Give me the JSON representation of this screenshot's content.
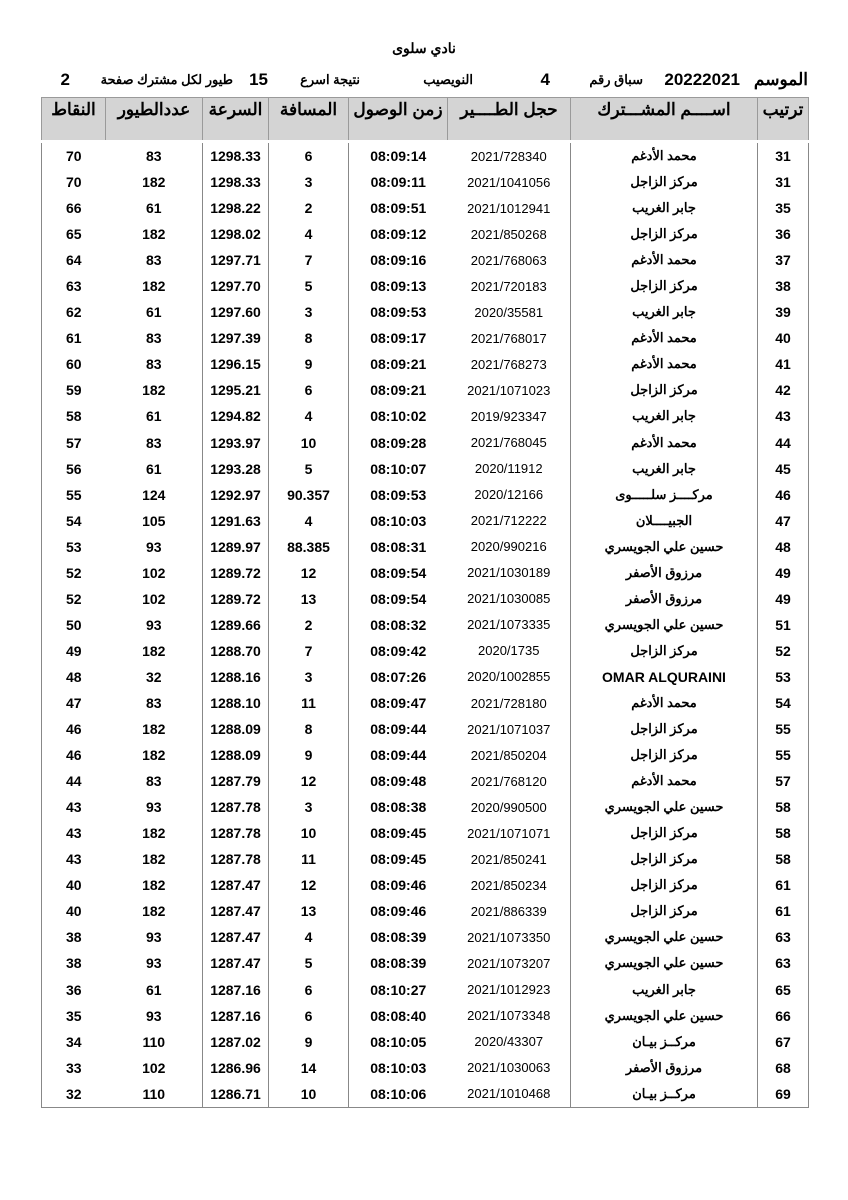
{
  "header": {
    "club": "نادي سلوى",
    "season_label": "الموسم",
    "season": "20222021",
    "race_label": "سباق رقم",
    "race_number": "4",
    "location": "النويصيب",
    "result_label": "نتيجة اسرع",
    "birds_per_member": "15",
    "birds_label": "طيور لكل مشترك صفحة",
    "page": "2"
  },
  "columns": {
    "points": "النقاط",
    "birds_count": "عددالطيور",
    "speed": "السرعة",
    "distance": "المسافة",
    "arrival": "زمن الوصول",
    "ring": "حجل الطــــير",
    "name": "اســــم المشـــترك",
    "rank": "ترتيب"
  },
  "rows": [
    {
      "points": "70",
      "birds": "83",
      "speed": "1298.33",
      "distance": "6",
      "arrival": "08:09:14",
      "ring": "2021/728340",
      "name": "محمد الأدغم",
      "rank": "31"
    },
    {
      "points": "70",
      "birds": "182",
      "speed": "1298.33",
      "distance": "3",
      "arrival": "08:09:11",
      "ring": "2021/1041056",
      "name": "مركز الزاجل",
      "rank": "31"
    },
    {
      "points": "66",
      "birds": "61",
      "speed": "1298.22",
      "distance": "2",
      "arrival": "08:09:51",
      "ring": "2021/1012941",
      "name": "جابر الغريب",
      "rank": "35"
    },
    {
      "points": "65",
      "birds": "182",
      "speed": "1298.02",
      "distance": "4",
      "arrival": "08:09:12",
      "ring": "2021/850268",
      "name": "مركز الزاجل",
      "rank": "36"
    },
    {
      "points": "64",
      "birds": "83",
      "speed": "1297.71",
      "distance": "7",
      "arrival": "08:09:16",
      "ring": "2021/768063",
      "name": "محمد الأدغم",
      "rank": "37"
    },
    {
      "points": "63",
      "birds": "182",
      "speed": "1297.70",
      "distance": "5",
      "arrival": "08:09:13",
      "ring": "2021/720183",
      "name": "مركز الزاجل",
      "rank": "38"
    },
    {
      "points": "62",
      "birds": "61",
      "speed": "1297.60",
      "distance": "3",
      "arrival": "08:09:53",
      "ring": "2020/35581",
      "name": "جابر الغريب",
      "rank": "39"
    },
    {
      "points": "61",
      "birds": "83",
      "speed": "1297.39",
      "distance": "8",
      "arrival": "08:09:17",
      "ring": "2021/768017",
      "name": "محمد الأدغم",
      "rank": "40"
    },
    {
      "points": "60",
      "birds": "83",
      "speed": "1296.15",
      "distance": "9",
      "arrival": "08:09:21",
      "ring": "2021/768273",
      "name": "محمد الأدغم",
      "rank": "41"
    },
    {
      "points": "59",
      "birds": "182",
      "speed": "1295.21",
      "distance": "6",
      "arrival": "08:09:21",
      "ring": "2021/1071023",
      "name": "مركز الزاجل",
      "rank": "42"
    },
    {
      "points": "58",
      "birds": "61",
      "speed": "1294.82",
      "distance": "4",
      "arrival": "08:10:02",
      "ring": "2019/923347",
      "name": "جابر الغريب",
      "rank": "43"
    },
    {
      "points": "57",
      "birds": "83",
      "speed": "1293.97",
      "distance": "10",
      "arrival": "08:09:28",
      "ring": "2021/768045",
      "name": "محمد الأدغم",
      "rank": "44"
    },
    {
      "points": "56",
      "birds": "61",
      "speed": "1293.28",
      "distance": "5",
      "arrival": "08:10:07",
      "ring": "2020/11912",
      "name": "جابر الغريب",
      "rank": "45"
    },
    {
      "points": "55",
      "birds": "124",
      "speed": "1292.97",
      "distance": "90.357",
      "arrival": "08:09:53",
      "ring": "2020/12166",
      "name": "مركــــز سلـــــوى",
      "rank": "46"
    },
    {
      "points": "54",
      "birds": "105",
      "speed": "1291.63",
      "distance": "4",
      "arrival": "08:10:03",
      "ring": "2021/712222",
      "name": "الجبيــــلان",
      "rank": "47"
    },
    {
      "points": "53",
      "birds": "93",
      "speed": "1289.97",
      "distance": "88.385",
      "arrival": "08:08:31",
      "ring": "2020/990216",
      "name": "حسين علي الجويسري",
      "rank": "48"
    },
    {
      "points": "52",
      "birds": "102",
      "speed": "1289.72",
      "distance": "12",
      "arrival": "08:09:54",
      "ring": "2021/1030189",
      "name": "مرزوق الأصفر",
      "rank": "49"
    },
    {
      "points": "52",
      "birds": "102",
      "speed": "1289.72",
      "distance": "13",
      "arrival": "08:09:54",
      "ring": "2021/1030085",
      "name": "مرزوق الأصفر",
      "rank": "49"
    },
    {
      "points": "50",
      "birds": "93",
      "speed": "1289.66",
      "distance": "2",
      "arrival": "08:08:32",
      "ring": "2021/1073335",
      "name": "حسين علي الجويسري",
      "rank": "51"
    },
    {
      "points": "49",
      "birds": "182",
      "speed": "1288.70",
      "distance": "7",
      "arrival": "08:09:42",
      "ring": "2020/1735",
      "name": "مركز الزاجل",
      "rank": "52"
    },
    {
      "points": "48",
      "birds": "32",
      "speed": "1288.16",
      "distance": "3",
      "arrival": "08:07:26",
      "ring": "2020/1002855",
      "name": "OMAR ALQURAINI",
      "rank": "53"
    },
    {
      "points": "47",
      "birds": "83",
      "speed": "1288.10",
      "distance": "11",
      "arrival": "08:09:47",
      "ring": "2021/728180",
      "name": "محمد الأدغم",
      "rank": "54"
    },
    {
      "points": "46",
      "birds": "182",
      "speed": "1288.09",
      "distance": "8",
      "arrival": "08:09:44",
      "ring": "2021/1071037",
      "name": "مركز الزاجل",
      "rank": "55"
    },
    {
      "points": "46",
      "birds": "182",
      "speed": "1288.09",
      "distance": "9",
      "arrival": "08:09:44",
      "ring": "2021/850204",
      "name": "مركز الزاجل",
      "rank": "55"
    },
    {
      "points": "44",
      "birds": "83",
      "speed": "1287.79",
      "distance": "12",
      "arrival": "08:09:48",
      "ring": "2021/768120",
      "name": "محمد الأدغم",
      "rank": "57"
    },
    {
      "points": "43",
      "birds": "93",
      "speed": "1287.78",
      "distance": "3",
      "arrival": "08:08:38",
      "ring": "2020/990500",
      "name": "حسين علي الجويسري",
      "rank": "58"
    },
    {
      "points": "43",
      "birds": "182",
      "speed": "1287.78",
      "distance": "10",
      "arrival": "08:09:45",
      "ring": "2021/1071071",
      "name": "مركز الزاجل",
      "rank": "58"
    },
    {
      "points": "43",
      "birds": "182",
      "speed": "1287.78",
      "distance": "11",
      "arrival": "08:09:45",
      "ring": "2021/850241",
      "name": "مركز الزاجل",
      "rank": "58"
    },
    {
      "points": "40",
      "birds": "182",
      "speed": "1287.47",
      "distance": "12",
      "arrival": "08:09:46",
      "ring": "2021/850234",
      "name": "مركز الزاجل",
      "rank": "61"
    },
    {
      "points": "40",
      "birds": "182",
      "speed": "1287.47",
      "distance": "13",
      "arrival": "08:09:46",
      "ring": "2021/886339",
      "name": "مركز الزاجل",
      "rank": "61"
    },
    {
      "points": "38",
      "birds": "93",
      "speed": "1287.47",
      "distance": "4",
      "arrival": "08:08:39",
      "ring": "2021/1073350",
      "name": "حسين علي الجويسري",
      "rank": "63"
    },
    {
      "points": "38",
      "birds": "93",
      "speed": "1287.47",
      "distance": "5",
      "arrival": "08:08:39",
      "ring": "2021/1073207",
      "name": "حسين علي الجويسري",
      "rank": "63"
    },
    {
      "points": "36",
      "birds": "61",
      "speed": "1287.16",
      "distance": "6",
      "arrival": "08:10:27",
      "ring": "2021/1012923",
      "name": "جابر الغريب",
      "rank": "65"
    },
    {
      "points": "35",
      "birds": "93",
      "speed": "1287.16",
      "distance": "6",
      "arrival": "08:08:40",
      "ring": "2021/1073348",
      "name": "حسين علي الجويسري",
      "rank": "66"
    },
    {
      "points": "34",
      "birds": "110",
      "speed": "1287.02",
      "distance": "9",
      "arrival": "08:10:05",
      "ring": "2020/43307",
      "name": "مركــز بيـان",
      "rank": "67"
    },
    {
      "points": "33",
      "birds": "102",
      "speed": "1286.96",
      "distance": "14",
      "arrival": "08:10:03",
      "ring": "2021/1030063",
      "name": "مرزوق الأصفر",
      "rank": "68"
    },
    {
      "points": "32",
      "birds": "110",
      "speed": "1286.71",
      "distance": "10",
      "arrival": "08:10:06",
      "ring": "2021/1010468",
      "name": "مركــز بيـان",
      "rank": "69"
    }
  ]
}
